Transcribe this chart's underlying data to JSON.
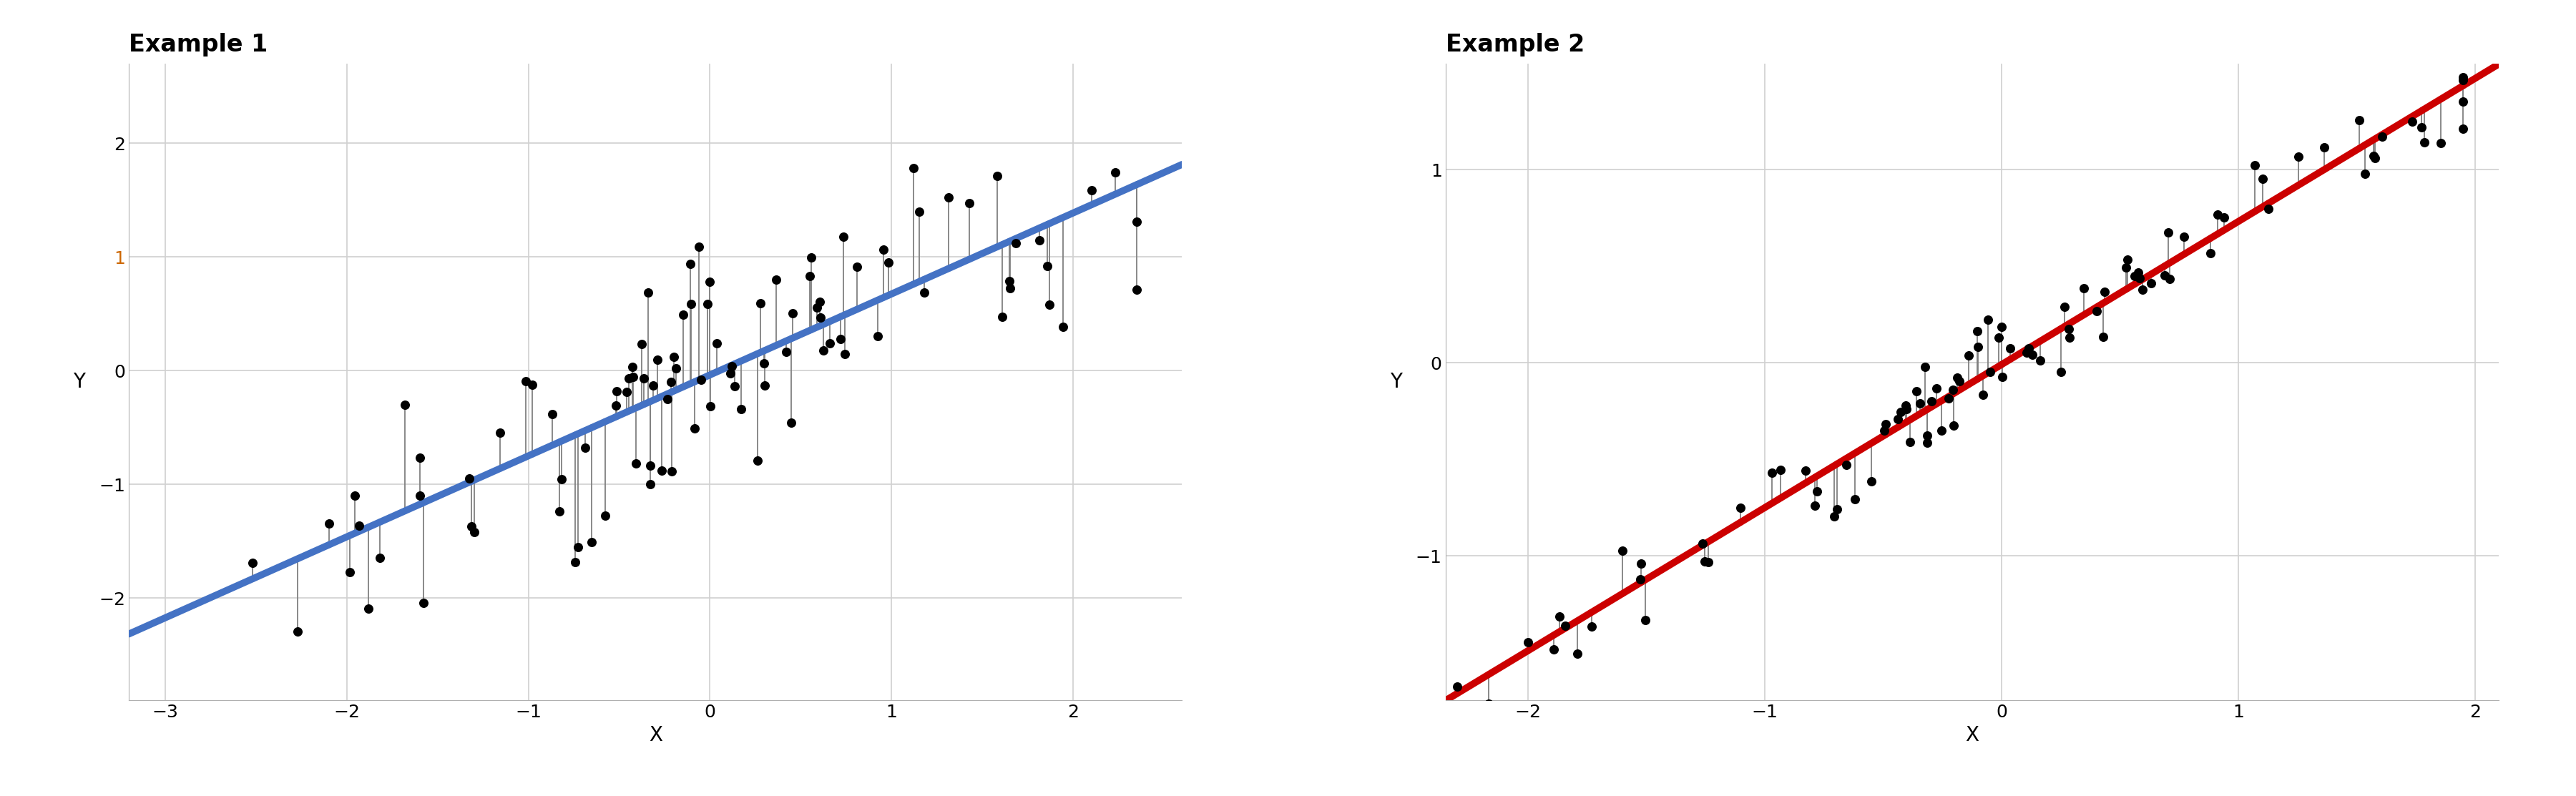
{
  "title1": "Example 1",
  "title2": "Example 2",
  "xlabel": "X",
  "ylabel": "Y",
  "bg_color": "#ffffff",
  "grid_color": "#d0d0d0",
  "line_color1": "#4472c4",
  "line_color2": "#cc0000",
  "residual_line_color": "#808080",
  "point_color": "#000000",
  "open_circle_color1": "#4472c4",
  "open_circle_color2": "#cc0000",
  "orange_tick_color": "#cc6600",
  "n1": 100,
  "n2": 100,
  "slope1": 0.75,
  "intercept1": 0.0,
  "noise1": 0.55,
  "slope2": 0.75,
  "intercept2": 0.0,
  "noise2": 0.13,
  "xlim1": [
    -3.2,
    2.6
  ],
  "ylim1": [
    -2.9,
    2.7
  ],
  "xlim2": [
    -2.35,
    2.1
  ],
  "ylim2": [
    -1.75,
    1.55
  ],
  "xticks1": [
    -3,
    -2,
    -1,
    0,
    1,
    2
  ],
  "yticks1": [
    -2,
    -1,
    0,
    1,
    2
  ],
  "xticks2": [
    -2,
    -1,
    0,
    1,
    2
  ],
  "yticks2": [
    -1,
    0,
    1
  ],
  "title_fontsize": 24,
  "label_fontsize": 20,
  "tick_fontsize": 18,
  "line_width": 7,
  "residual_lw": 1.3,
  "point_size": 70,
  "open_circle_size": 25
}
